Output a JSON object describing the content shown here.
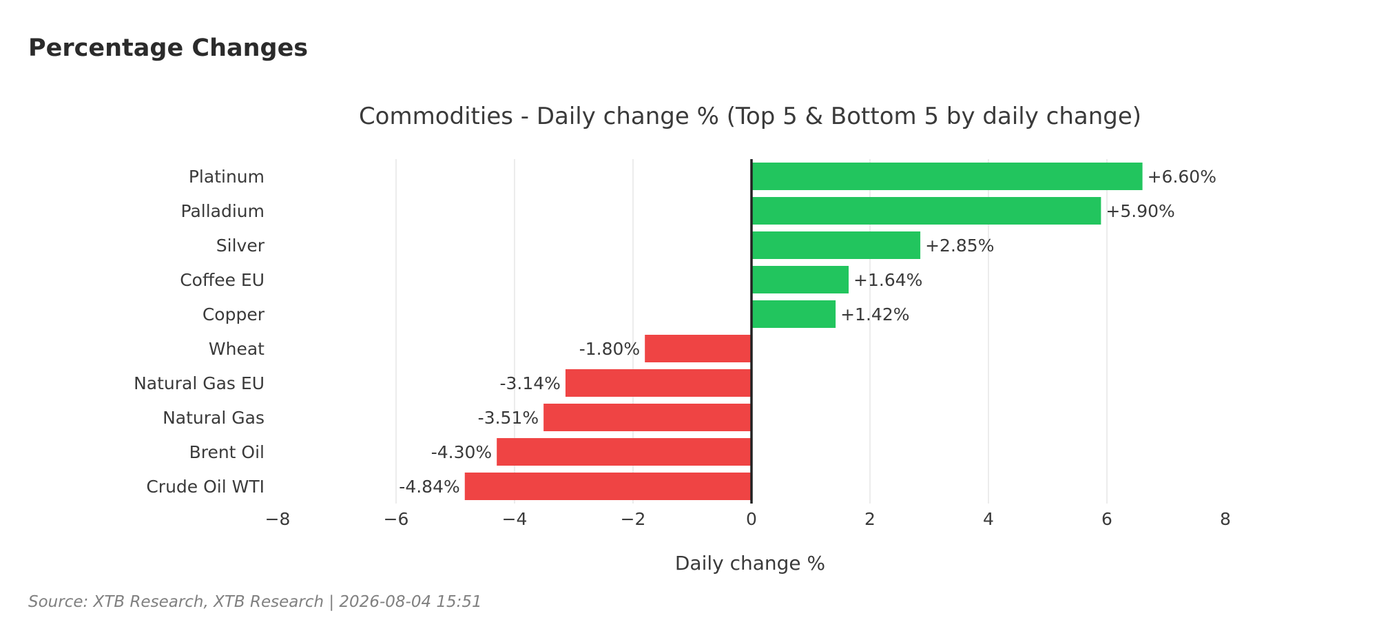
{
  "page": {
    "heading": "Percentage Changes",
    "source": "Source: XTB Research, XTB Research | 2026-08-04 15:51"
  },
  "colors": {
    "positive": "#22c55e",
    "negative": "#ef4444",
    "zero_line": "#222222",
    "grid": "#e6e6e6",
    "text": "#3a3a3a"
  },
  "chart_data": {
    "type": "bar",
    "orientation": "horizontal",
    "title": "Commodities - Daily change % (Top 5 & Bottom 5 by daily change)",
    "xlabel": "Daily change %",
    "ylabel": "",
    "xlim": [
      -8,
      8
    ],
    "xticks": [
      {
        "value": -8,
        "label": "−8"
      },
      {
        "value": -6,
        "label": "−6"
      },
      {
        "value": -4,
        "label": "−4"
      },
      {
        "value": -2,
        "label": "−2"
      },
      {
        "value": 0,
        "label": "0"
      },
      {
        "value": 2,
        "label": "2"
      },
      {
        "value": 4,
        "label": "4"
      },
      {
        "value": 6,
        "label": "6"
      },
      {
        "value": 8,
        "label": "8"
      }
    ],
    "grid": true,
    "categories": [
      "Platinum",
      "Palladium",
      "Silver",
      "Coffee EU",
      "Copper",
      "Wheat",
      "Natural Gas EU",
      "Natural Gas",
      "Brent Oil",
      "Crude Oil WTI"
    ],
    "values": [
      6.6,
      5.9,
      2.85,
      1.64,
      1.42,
      -1.8,
      -3.14,
      -3.51,
      -4.3,
      -4.84
    ],
    "value_labels": [
      "+6.60%",
      "+5.90%",
      "+2.85%",
      "+1.64%",
      "+1.42%",
      "-1.80%",
      "-3.14%",
      "-3.51%",
      "-4.30%",
      "-4.84%"
    ]
  }
}
